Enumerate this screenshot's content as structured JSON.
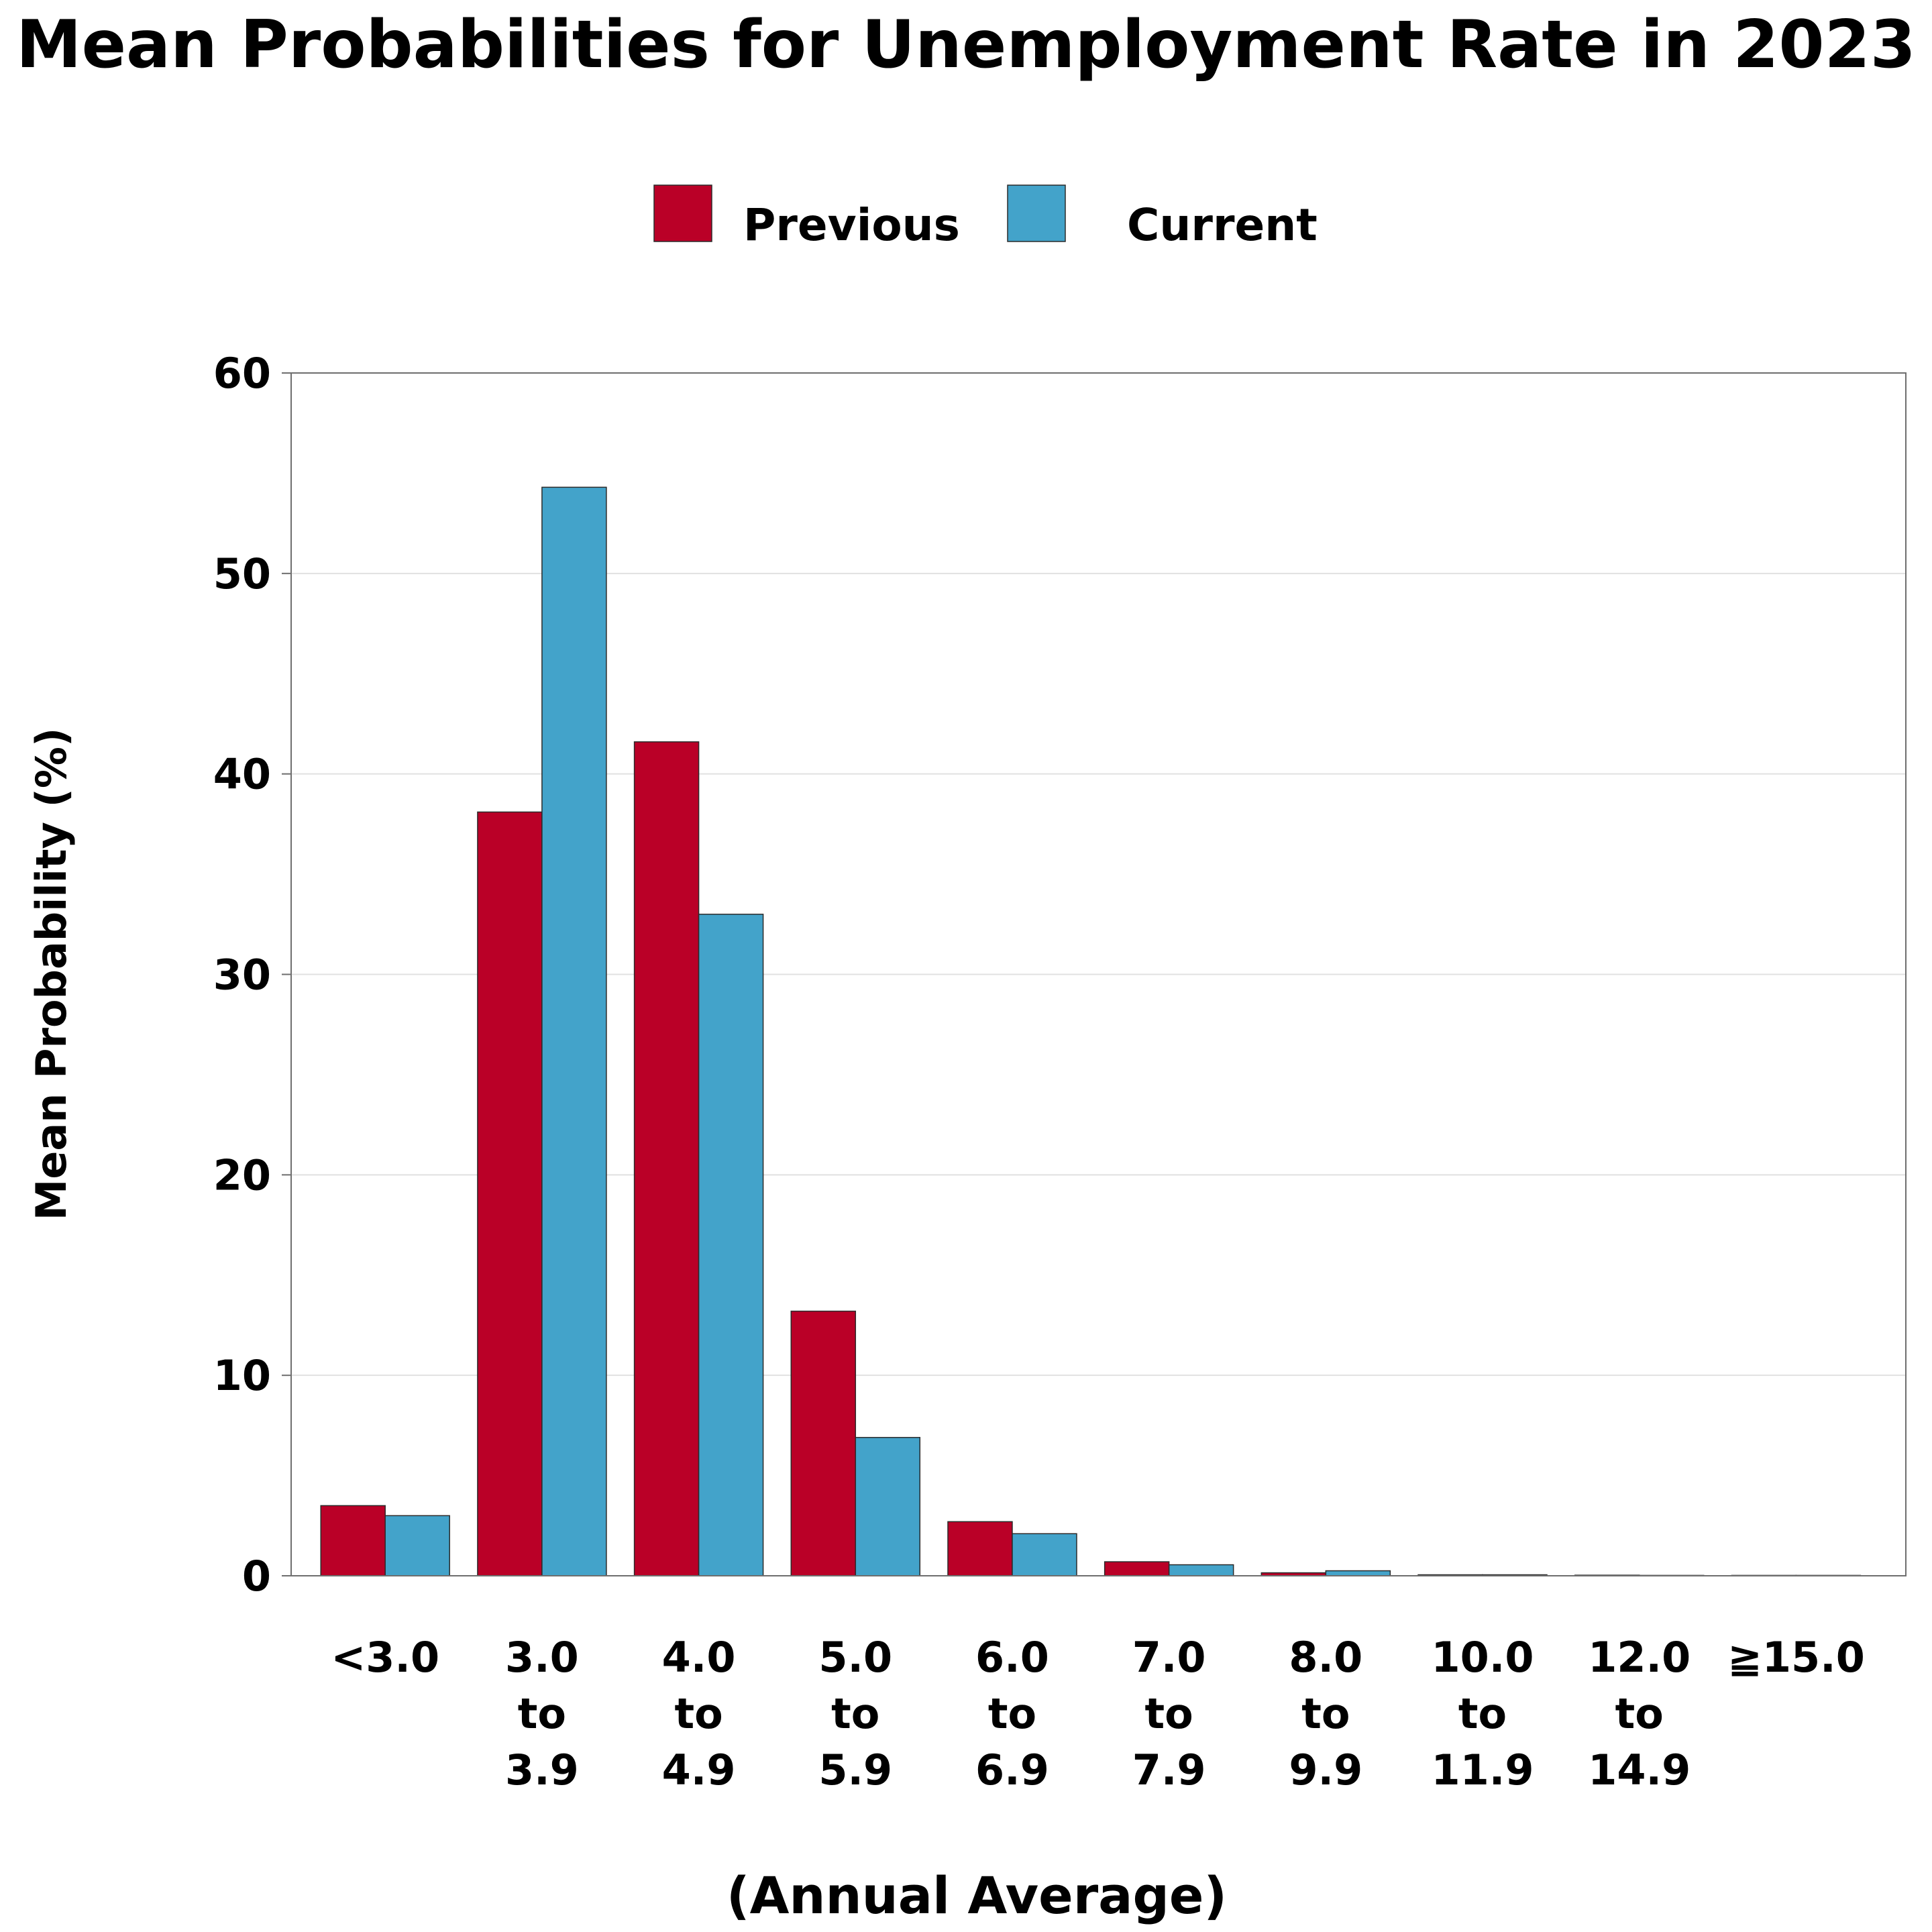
{
  "chart_data": {
    "type": "bar",
    "title": "Mean Probabilities for Unemployment Rate in 2023",
    "xlabel": "(Annual Average)",
    "ylabel": "Mean Probability (%)",
    "ylim": [
      0,
      60
    ],
    "yticks": [
      "0",
      "10",
      "20",
      "30",
      "40",
      "50",
      "60"
    ],
    "grid": true,
    "legend_position": "top-center",
    "categories": [
      [
        "<3.0"
      ],
      [
        "3.0",
        "to",
        "3.9"
      ],
      [
        "4.0",
        "to",
        "4.9"
      ],
      [
        "5.0",
        "to",
        "5.9"
      ],
      [
        "6.0",
        "to",
        "6.9"
      ],
      [
        "7.0",
        "to",
        "7.9"
      ],
      [
        "8.0",
        "to",
        "9.9"
      ],
      [
        "10.0",
        "to",
        "11.9"
      ],
      [
        "12.0",
        "to",
        "14.9"
      ],
      [
        "≧15.0"
      ]
    ],
    "series": [
      {
        "name": "Previous",
        "color": "#BA0027",
        "values": [
          3.5,
          38.1,
          41.6,
          13.2,
          2.7,
          0.7,
          0.15,
          0.05,
          0.03,
          0.02
        ]
      },
      {
        "name": "Current",
        "color": "#43A3CA",
        "values": [
          3.0,
          54.3,
          33.0,
          6.9,
          2.1,
          0.55,
          0.25,
          0.05,
          0.02,
          0.02
        ]
      }
    ]
  }
}
